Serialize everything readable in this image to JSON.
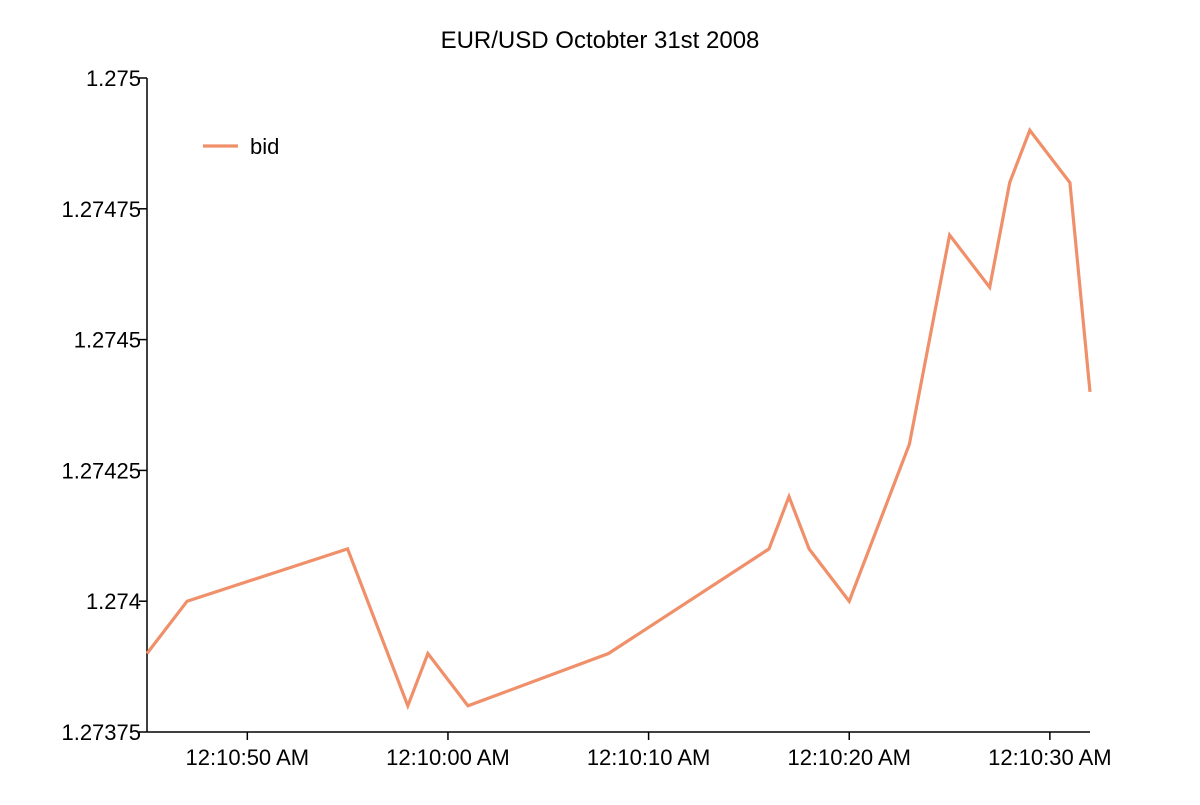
{
  "chart_data": {
    "type": "line",
    "title": "EUR/USD Octobter 31st 2008",
    "xlabel": "",
    "ylabel": "",
    "y_ticks": [
      "1.27375",
      "1.274",
      "1.27425",
      "1.2745",
      "1.27475",
      "1.275"
    ],
    "y_tick_values": [
      1.27375,
      1.274,
      1.27425,
      1.2745,
      1.27475,
      1.275
    ],
    "ylim": [
      1.27375,
      1.275
    ],
    "x_ticks": [
      "12:10:50 AM",
      "12:10:00 AM",
      "12:10:10 AM",
      "12:10:20 AM",
      "12:10:30 AM"
    ],
    "x_tick_values": [
      50,
      60,
      70,
      80,
      90
    ],
    "xlim": [
      45,
      92
    ],
    "legend_position": "top-left",
    "grid": false,
    "series": [
      {
        "name": "bid",
        "color": "#f0906a",
        "x": [
          45,
          47,
          55,
          58,
          59,
          61,
          68,
          76,
          77,
          78,
          80,
          83,
          85,
          87,
          88,
          89,
          91,
          92
        ],
        "values": [
          1.2739,
          1.274,
          1.2741,
          1.2738,
          1.2739,
          1.2738,
          1.2739,
          1.2741,
          1.2742,
          1.2741,
          1.274,
          1.2743,
          1.2747,
          1.2746,
          1.2748,
          1.2749,
          1.2748,
          1.2744
        ]
      }
    ]
  }
}
